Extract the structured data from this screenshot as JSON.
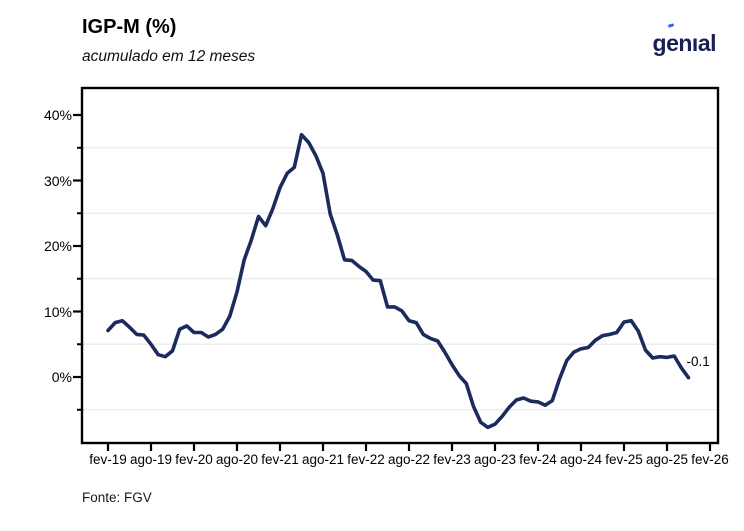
{
  "chart": {
    "title": "IGP-M (%)",
    "subtitle": "acumulado em 12 meses",
    "source": "Fonte: FGV"
  },
  "brand": {
    "logo_part1": "g",
    "logo_part2": "e",
    "logo_part3": "nıal",
    "logo_color": "#191f55",
    "accent_color": "#2f6af2"
  },
  "chart_data": {
    "type": "line",
    "title": "IGP-M (%)",
    "subtitle": "acumulado em 12 meses",
    "grid": "horizontal only, faint, at -5/5/15/25/35",
    "legend_position": "none",
    "y_axis": {
      "min": -10,
      "max": 44,
      "major_step": 10,
      "minor_step": 5,
      "tick_labels": [
        "0%",
        "10%",
        "20%",
        "30%",
        "40%"
      ],
      "tick_values": [
        0,
        10,
        20,
        30,
        40
      ],
      "minor_tick_values": [
        -5,
        5,
        15,
        25,
        35
      ],
      "gridline_values": [
        -5,
        5,
        15,
        25,
        35
      ]
    },
    "x_axis": {
      "tick_labels": [
        "fev-19",
        "ago-19",
        "fev-20",
        "ago-20",
        "fev-21",
        "ago-21",
        "fev-22",
        "ago-22",
        "fev-23",
        "ago-23",
        "fev-24",
        "ago-24",
        "fev-25",
        "ago-25",
        "fev-26"
      ],
      "frequency": "monthly",
      "first_month": "fev-19",
      "last_month": "nov-25"
    },
    "end_label": "-0.1",
    "series": [
      {
        "name": "IGP-M acumulado em 12 meses (%)",
        "color": "#1b2b5e",
        "first_month": "fev-19",
        "values": [
          7.1,
          8.3,
          8.6,
          7.6,
          6.5,
          6.4,
          5.0,
          3.4,
          3.1,
          4.0,
          7.3,
          7.8,
          6.8,
          6.8,
          6.1,
          6.5,
          7.3,
          9.3,
          13.0,
          17.9,
          20.9,
          24.5,
          23.1,
          25.7,
          28.9,
          31.1,
          32.0,
          37.0,
          35.8,
          33.8,
          31.1,
          24.9,
          21.7,
          17.9,
          17.8,
          16.9,
          16.1,
          14.8,
          14.7,
          10.7,
          10.7,
          10.1,
          8.6,
          8.3,
          6.5,
          5.9,
          5.5,
          3.8,
          1.9,
          0.2,
          -1.0,
          -4.5,
          -6.9,
          -7.7,
          -7.2,
          -6.0,
          -4.6,
          -3.5,
          -3.2,
          -3.7,
          -3.8,
          -4.3,
          -3.6,
          -0.3,
          2.5,
          3.8,
          4.3,
          4.5,
          5.6,
          6.3,
          6.5,
          6.8,
          8.4,
          8.6,
          7.0,
          4.1,
          2.9,
          3.1,
          3.0,
          3.2,
          1.4,
          -0.1
        ]
      }
    ]
  }
}
